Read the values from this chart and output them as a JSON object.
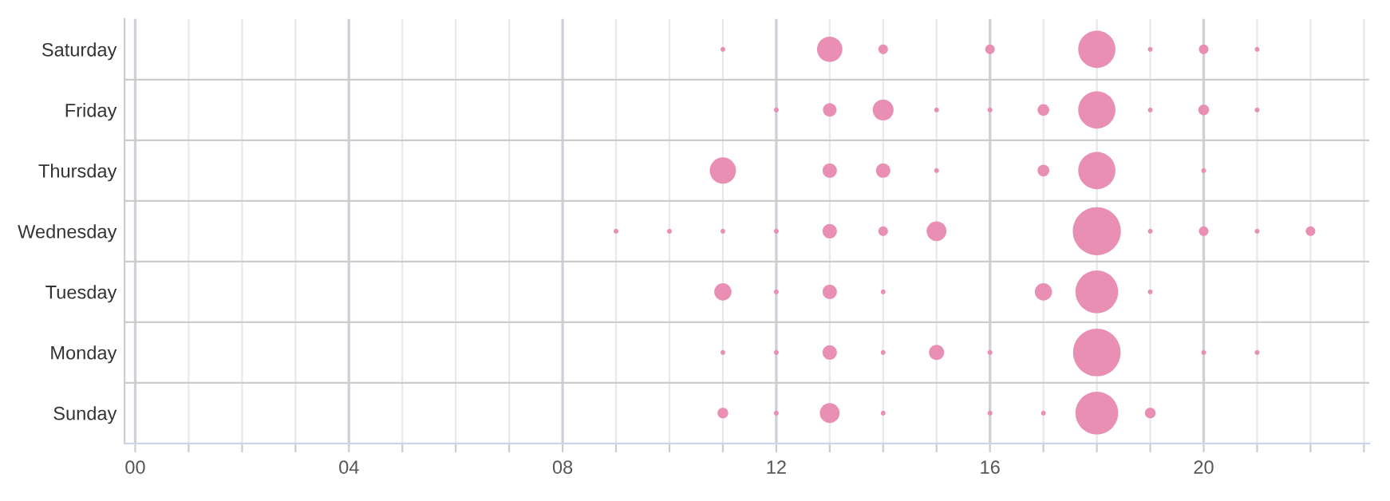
{
  "chart_data": {
    "type": "bubble",
    "orientation": "horizontal",
    "categories": [
      "Saturday",
      "Friday",
      "Thursday",
      "Wednesday",
      "Tuesday",
      "Monday",
      "Sunday"
    ],
    "xlim": [
      -0.2,
      23.1
    ],
    "xticks": [
      {
        "value": 0,
        "label": "00"
      },
      {
        "value": 1,
        "label": null
      },
      {
        "value": 2,
        "label": null
      },
      {
        "value": 3,
        "label": null
      },
      {
        "value": 4,
        "label": "04"
      },
      {
        "value": 5,
        "label": null
      },
      {
        "value": 6,
        "label": null
      },
      {
        "value": 7,
        "label": null
      },
      {
        "value": 8,
        "label": "08"
      },
      {
        "value": 9,
        "label": null
      },
      {
        "value": 10,
        "label": null
      },
      {
        "value": 11,
        "label": null
      },
      {
        "value": 12,
        "label": "12"
      },
      {
        "value": 13,
        "label": null
      },
      {
        "value": 14,
        "label": null
      },
      {
        "value": 15,
        "label": null
      },
      {
        "value": 16,
        "label": "16"
      },
      {
        "value": 17,
        "label": null
      },
      {
        "value": 18,
        "label": null
      },
      {
        "value": 19,
        "label": null
      },
      {
        "value": 20,
        "label": "20"
      },
      {
        "value": 21,
        "label": null
      },
      {
        "value": 22,
        "label": null
      },
      {
        "value": 23,
        "label": null
      }
    ],
    "grid": true,
    "color": "#e88fb3",
    "series": [
      {
        "values": [
          null,
          null,
          null,
          9,
          null,
          null,
          null
        ],
        "sizes": [
          null,
          null,
          null,
          0.01,
          null,
          null,
          null
        ]
      },
      {
        "values": [
          null,
          null,
          null,
          10,
          null,
          null,
          null
        ],
        "sizes": [
          null,
          null,
          null,
          0.01,
          null,
          null,
          null
        ]
      },
      {
        "values": [
          11,
          null,
          11,
          11,
          11,
          11,
          11
        ],
        "sizes": [
          0.01,
          null,
          0.3,
          0.01,
          0.13,
          0.01,
          0.05
        ]
      },
      {
        "values": [
          null,
          12,
          null,
          12,
          12,
          12,
          12
        ],
        "sizes": [
          null,
          0.01,
          null,
          0.01,
          0.01,
          0.01,
          0.01
        ]
      },
      {
        "values": [
          13,
          13,
          13,
          13,
          13,
          13,
          13
        ],
        "sizes": [
          0.28,
          0.08,
          0.09,
          0.09,
          0.09,
          0.09,
          0.17
        ]
      },
      {
        "values": [
          14,
          14,
          14,
          14,
          14,
          14,
          14
        ],
        "sizes": [
          0.04,
          0.19,
          0.09,
          0.04,
          0.01,
          0.01,
          0.01
        ]
      },
      {
        "values": [
          null,
          15,
          15,
          15,
          null,
          15,
          null
        ],
        "sizes": [
          null,
          0.01,
          0.01,
          0.17,
          null,
          0.1,
          null
        ]
      },
      {
        "values": [
          16,
          16,
          null,
          null,
          null,
          16,
          16
        ],
        "sizes": [
          0.04,
          0.01,
          null,
          null,
          null,
          0.01,
          0.01
        ]
      },
      {
        "values": [
          null,
          17,
          17,
          null,
          17,
          null,
          17
        ],
        "sizes": [
          null,
          0.06,
          0.06,
          null,
          0.13,
          null,
          0.01
        ]
      },
      {
        "values": [
          18,
          18,
          18,
          18,
          18,
          18,
          18
        ],
        "sizes": [
          0.6,
          0.6,
          0.6,
          1,
          0.79,
          0.98,
          0.79
        ]
      },
      {
        "values": [
          19,
          19,
          null,
          19,
          19,
          null,
          19
        ],
        "sizes": [
          0.01,
          0.01,
          null,
          0.01,
          0.01,
          null,
          0.05
        ]
      },
      {
        "values": [
          20,
          20,
          20,
          20,
          null,
          20,
          null
        ],
        "sizes": [
          0.04,
          0.05,
          0.01,
          0.04,
          null,
          0.01,
          null
        ]
      },
      {
        "values": [
          21,
          21,
          null,
          21,
          null,
          21,
          null
        ],
        "sizes": [
          0.01,
          0.01,
          null,
          0.01,
          null,
          0.01,
          null
        ]
      },
      {
        "values": [
          null,
          null,
          null,
          22,
          null,
          null,
          null
        ],
        "sizes": [
          null,
          null,
          null,
          0.04,
          null,
          null,
          null
        ]
      }
    ]
  }
}
